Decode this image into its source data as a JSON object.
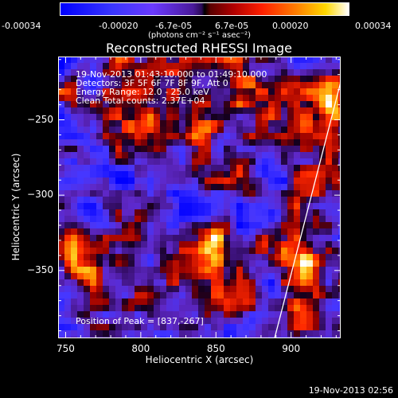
{
  "colorbar": {
    "ticks": [
      "-0.00034",
      "-0.00020",
      "-6.7e-05",
      "6.7e-05",
      "0.00020",
      "0.00034"
    ],
    "unit_label": "(photons cm⁻² s⁻¹ asec⁻²)"
  },
  "chart_data": {
    "type": "heatmap",
    "title": "Reconstructed RHESSI Image",
    "xlabel": "Heliocentric X (arcsec)",
    "ylabel": "Heliocentric Y (arcsec)",
    "xlim": [
      745,
      933
    ],
    "ylim": [
      -395,
      -208
    ],
    "xticks": [
      750,
      800,
      850,
      900
    ],
    "yticks": [
      -250,
      -300,
      -350
    ],
    "zlim": [
      -0.00034,
      0.00034
    ],
    "colormap": "blue-purple-black-red-yellow-white",
    "annotations": [
      "19-Nov-2013 01:43:10.000 to 01:49:10.000",
      "Detectors: 3F 5F 6F 7F 8F 9F, Att 0",
      "Energy Range: 12.0 - 25.0 keV",
      "Clean     Total counts: 2.37E+04",
      "Position of Peak = [837,-267]"
    ],
    "peak": [
      837,
      -267
    ],
    "limb_line": [
      [
        889,
        -395
      ],
      [
        933,
        -225
      ]
    ]
  },
  "footer": {
    "timestamp": "19-Nov-2013 02:56"
  }
}
